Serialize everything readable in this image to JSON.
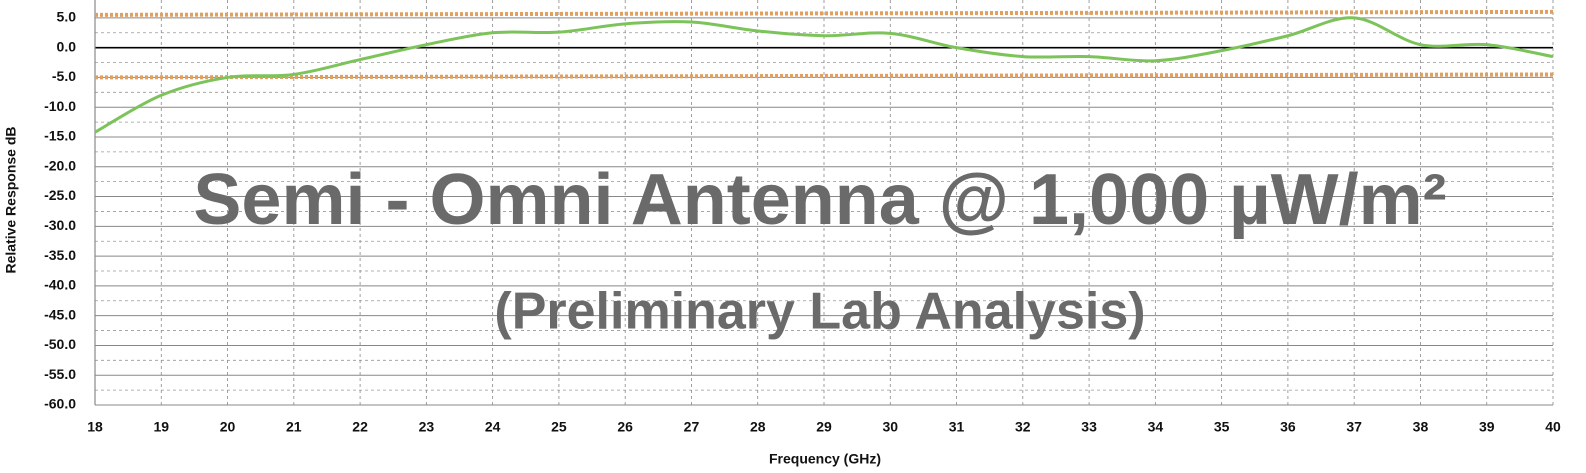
{
  "chart_data": {
    "type": "line",
    "x_label": "Frequency (GHz)",
    "y_label": "Relative Response dB",
    "annotations": [
      "Semi - Omni Antenna @ 1,000 µW/m²",
      "(Preliminary Lab Analysis)"
    ],
    "x": [
      18,
      19,
      20,
      21,
      22,
      23,
      24,
      25,
      26,
      27,
      28,
      29,
      30,
      31,
      32,
      33,
      34,
      35,
      36,
      37,
      38,
      39,
      40
    ],
    "series": [
      {
        "color": "#7cc35a",
        "values": [
          -14.2,
          -8.0,
          -5.0,
          -4.5,
          -2.0,
          0.5,
          2.5,
          2.6,
          4.0,
          4.3,
          2.8,
          2.0,
          2.4,
          0.0,
          -1.5,
          -1.5,
          -2.2,
          -0.5,
          2.0,
          5.0,
          0.5,
          0.5,
          -1.5
        ]
      }
    ],
    "reference_lines": [
      {
        "color": "#e0a060",
        "x": [
          18,
          40
        ],
        "values": [
          5.5,
          6.0
        ]
      },
      {
        "color": "#e0a060",
        "x": [
          18,
          40
        ],
        "values": [
          -5.0,
          -4.5
        ]
      }
    ],
    "xlim": [
      18,
      40
    ],
    "xticks": [
      18,
      19,
      20,
      21,
      22,
      23,
      24,
      25,
      26,
      27,
      28,
      29,
      30,
      31,
      32,
      33,
      34,
      35,
      36,
      37,
      38,
      39,
      40
    ],
    "ylim": [
      -60,
      8
    ],
    "yticks": [
      {
        "value": 5,
        "label": "5.0"
      },
      {
        "value": 0,
        "label": "0.0"
      },
      {
        "value": -5,
        "label": "-5.0"
      },
      {
        "value": -10,
        "label": "-10.0"
      },
      {
        "value": -15,
        "label": "-15.0"
      },
      {
        "value": -20,
        "label": "-20.0"
      },
      {
        "value": -25,
        "label": "-25.0"
      },
      {
        "value": -30,
        "label": "-30.0"
      },
      {
        "value": -35,
        "label": "-35.0"
      },
      {
        "value": -40,
        "label": "-40.0"
      },
      {
        "value": -45,
        "label": "-45.0"
      },
      {
        "value": -50,
        "label": "-50.0"
      },
      {
        "value": -55,
        "label": "-55.0"
      },
      {
        "value": -60,
        "label": "-60.0"
      }
    ],
    "grid": true,
    "zero_line": true
  }
}
